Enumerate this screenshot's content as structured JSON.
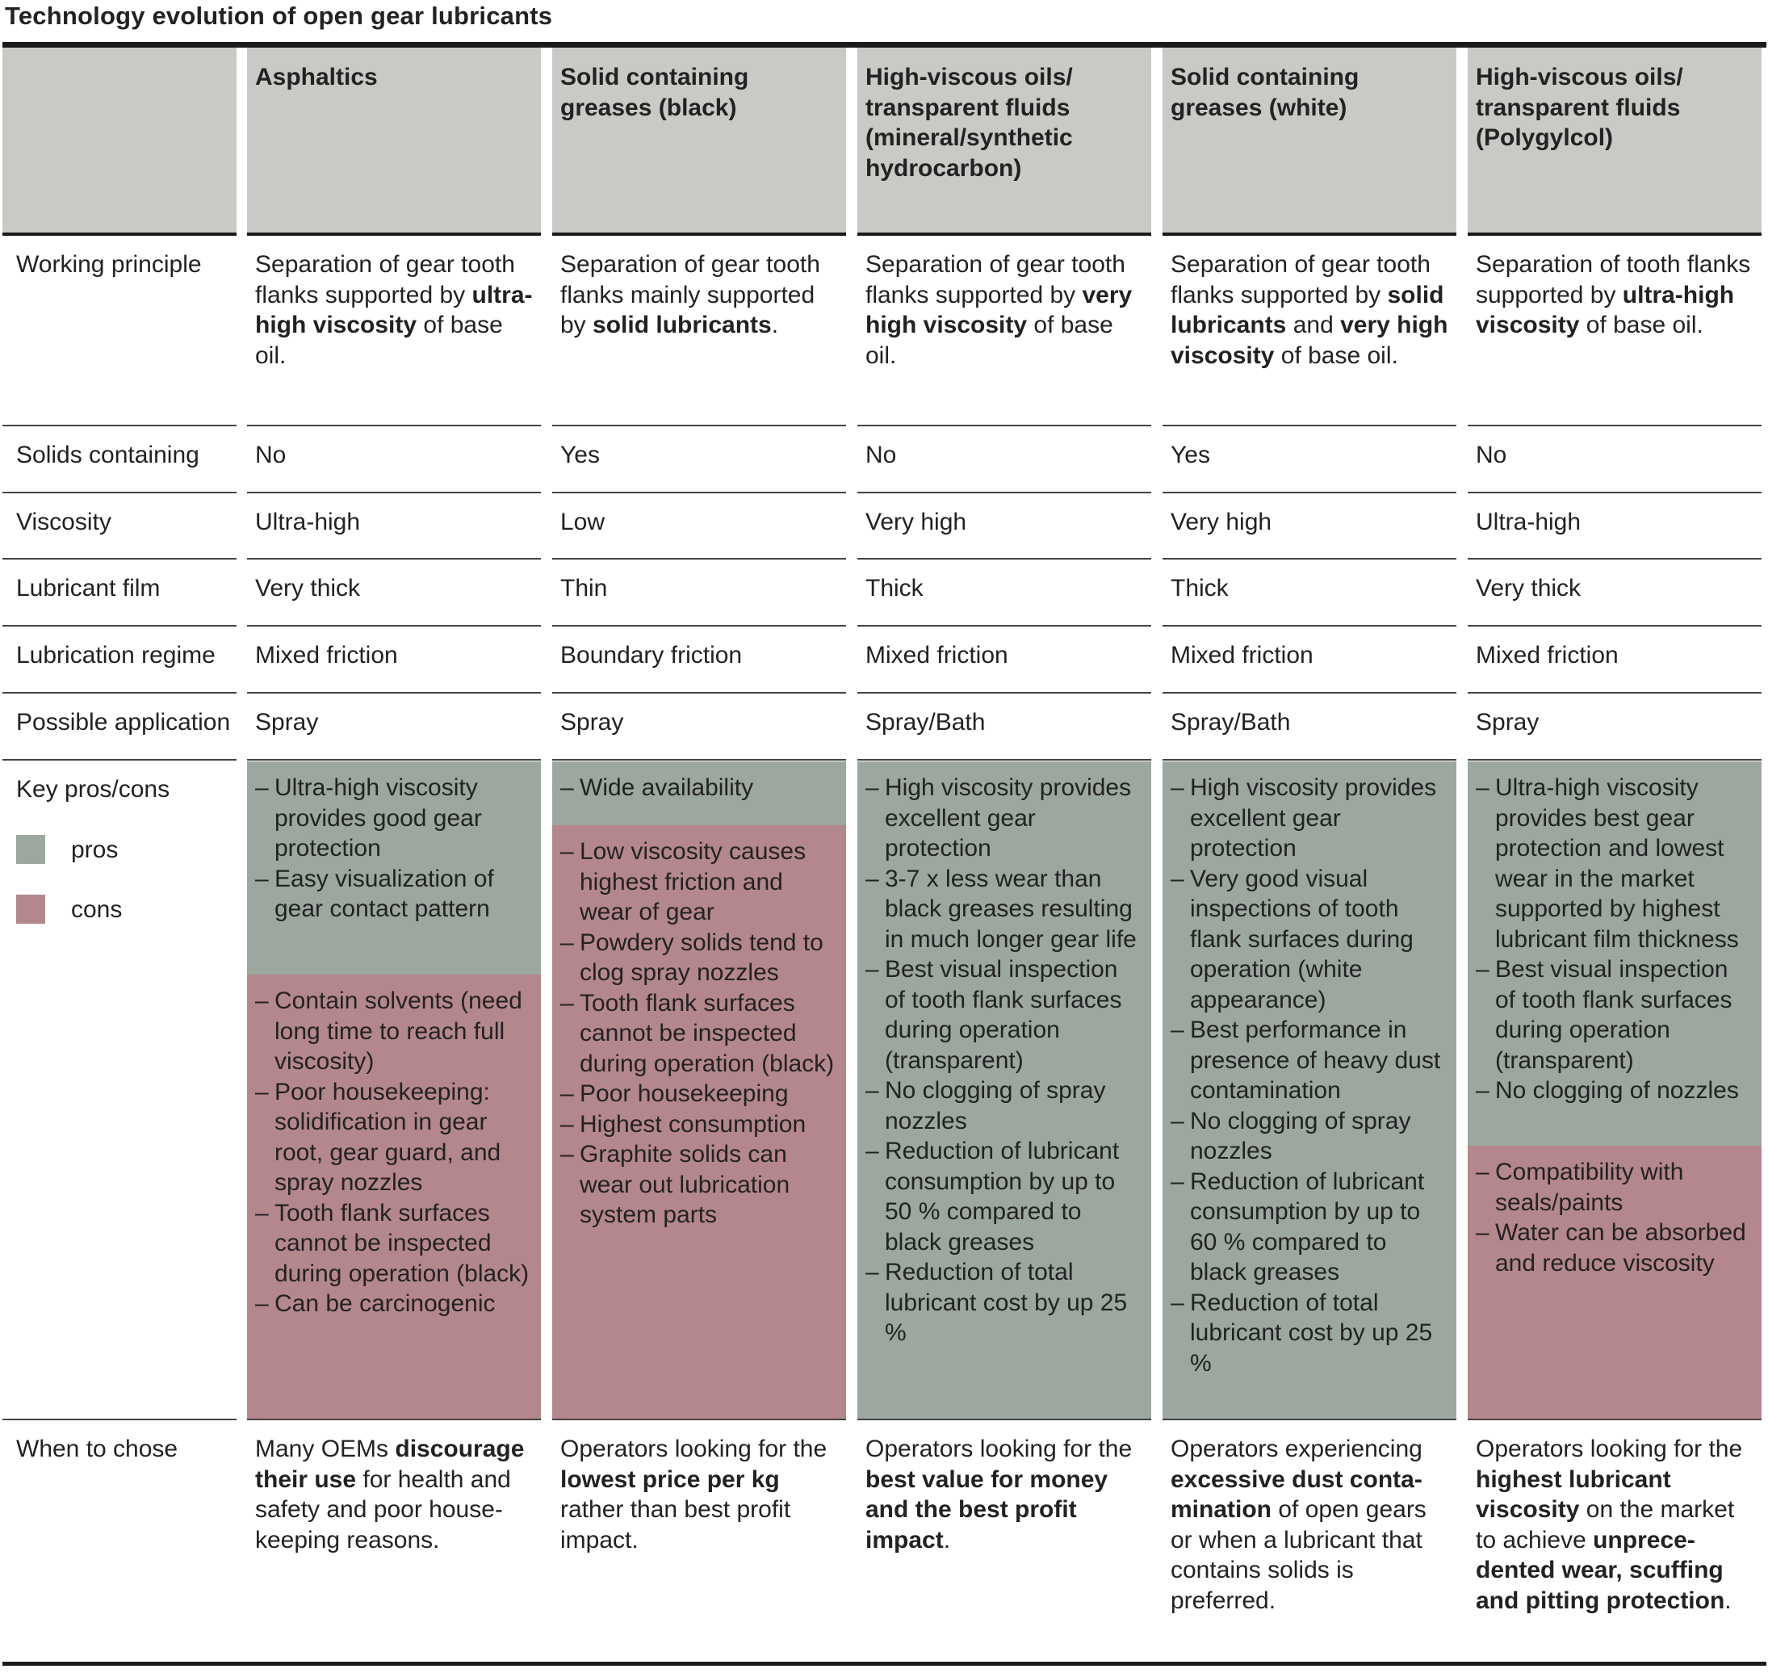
{
  "title": "Technology evolution of open gear lubricants",
  "colors": {
    "header_bg": "#c8cac6",
    "pros": "#9ba79f",
    "cons": "#b4878c"
  },
  "columns": [
    "Asphaltics",
    "Solid containing greases (black)",
    "High-viscous oils/ transparent fluids (mineral/synthetic hydrocarbon)",
    "Solid containing greases (white)",
    "High-viscous oils/ transparent fluids (Polygylcol)"
  ],
  "row_labels": {
    "working_principle": "Working principle",
    "solids": "Solids containing",
    "viscosity": "Viscosity",
    "film": "Lubricant film",
    "regime": "Lubrication regime",
    "application": "Possible application",
    "key": "Key pros/cons",
    "when": "When to chose"
  },
  "legend": {
    "pros": "pros",
    "cons": "cons"
  },
  "working_principle": [
    [
      "Separation of gear tooth flanks supported by ",
      "ultra-high viscosity",
      " of base oil."
    ],
    [
      "Separation of gear tooth flanks mainly supported by ",
      "solid lubricants",
      "."
    ],
    [
      "Separation of gear tooth flanks supported by ",
      "very high viscosity",
      " of base oil."
    ],
    [
      "Separation of gear tooth flanks supported by ",
      "solid lubricants",
      " and ",
      "very high viscosity",
      " of base oil."
    ],
    [
      "Separation of tooth flanks supported by ",
      "ultra-high viscosity",
      " of base oil."
    ]
  ],
  "solids": [
    "No",
    "Yes",
    "No",
    "Yes",
    "No"
  ],
  "viscosity": [
    "Ultra-high",
    "Low",
    "Very high",
    "Very high",
    "Ultra-high"
  ],
  "film": [
    "Very thick",
    "Thin",
    "Thick",
    "Thick",
    "Very thick"
  ],
  "regime": [
    "Mixed friction",
    "Boundary friction",
    "Mixed friction",
    "Mixed friction",
    "Mixed friction"
  ],
  "application": [
    "Spray",
    "Spray",
    "Spray/Bath",
    "Spray/Bath",
    "Spray"
  ],
  "pros": [
    [
      "Ultra-high viscosity provides good gear protection",
      "Easy visualization of gear contact pattern"
    ],
    [
      "Wide availability"
    ],
    [
      "High viscosity provides excellent gear protection",
      "3-7 x less wear than black greases resulting in much longer gear life",
      "Best visual inspection of tooth flank surfaces during operation (transparent)",
      "No clogging of spray nozzles",
      "Reduction of lubricant consumption by up to 50 % compared to black greases",
      "Reduction of total lubricant cost by up 25 %"
    ],
    [
      "High viscosity provides excellent gear protection",
      "Very good visual inspections of tooth flank surfaces during operation (white appearance)",
      "Best performance in presence of heavy dust contamination",
      "No clogging of spray nozzles",
      "Reduction of lubricant consumption by up to 60 % compared to black greases",
      "Reduction of total lubricant cost by up 25 %"
    ],
    [
      "Ultra-high viscosity provides best gear protection and lowest wear in the market supported by highest lubricant film thickness",
      "Best visual inspection of tooth flank surfaces during operation (transparent)",
      "No clogging of nozzles"
    ]
  ],
  "cons": [
    [
      "Contain solvents (need long time to reach full viscosity)",
      "Poor housekeeping: solidification in gear root, gear guard, and spray nozzles",
      "Tooth flank surfaces cannot be inspected during operation (black)",
      "Can be carcinogenic"
    ],
    [
      "Low viscosity causes highest friction and wear of gear",
      "Powdery solids tend to clog spray nozzles",
      "Tooth flank surfaces cannot be inspected during operation (black)",
      "Poor housekeeping",
      "Highest consumption",
      "Graphite solids can wear out lubrication system parts"
    ],
    [],
    [],
    [
      "Compatibility with seals/paints",
      "Water can be absorbed and reduce viscosity"
    ]
  ],
  "when": [
    [
      "Many OEMs ",
      "discourage their use",
      " for health and safety and poor house­keeping reasons."
    ],
    [
      "Operators looking for the ",
      "lowest price per kg",
      " rather than best profit impact."
    ],
    [
      "Operators looking for the ",
      "best value for money and the best profit impact",
      "."
    ],
    [
      "Operators experiencing ",
      "excessive dust conta­mination",
      " of open gears or when a lubricant that contains solids is preferred."
    ],
    [
      "Operators looking for the ",
      "highest lubricant viscosity",
      " on the market to achieve ",
      "unprece­dented wear, scuffing and pitting protection",
      "."
    ]
  ]
}
